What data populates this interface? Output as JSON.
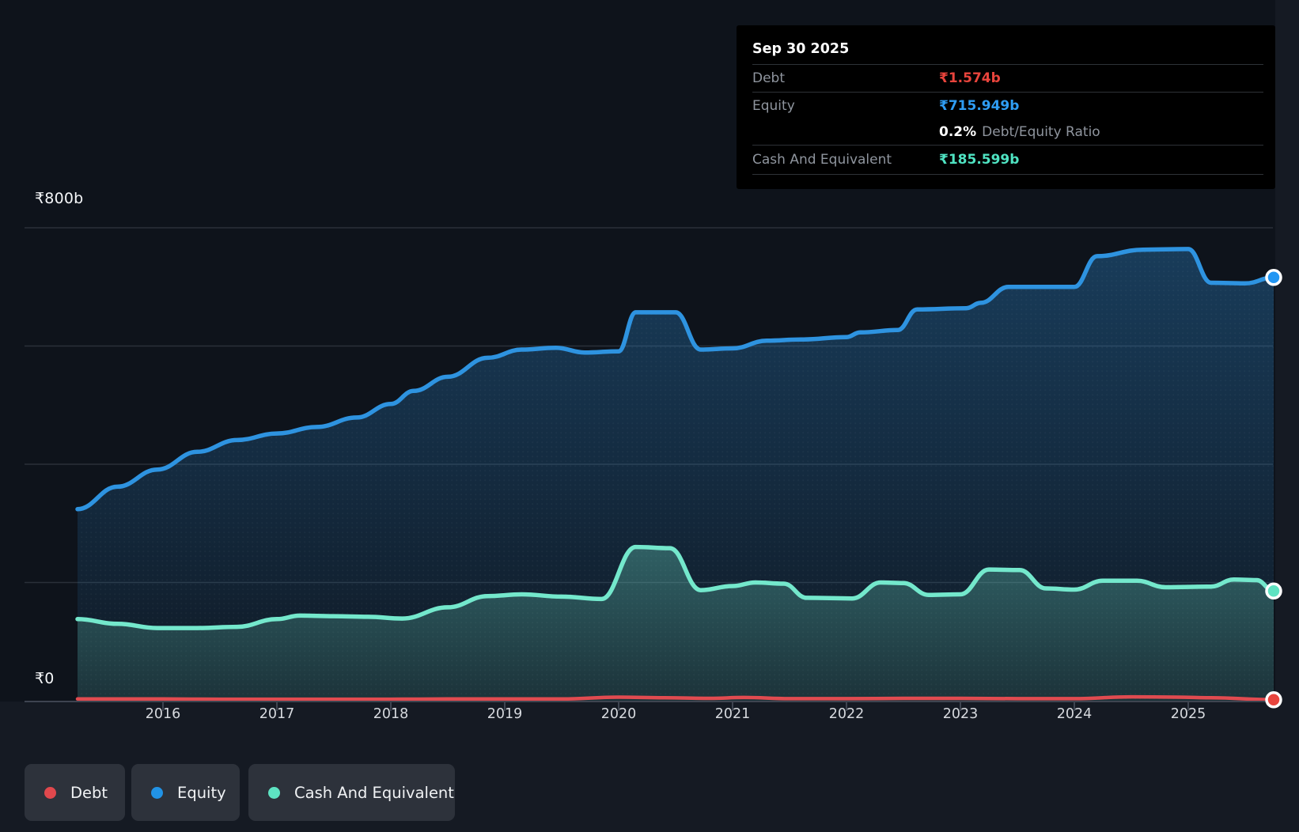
{
  "tooltip": {
    "date": "Sep 30 2025",
    "debt_label": "Debt",
    "debt_value": "₹1.574b",
    "equity_label": "Equity",
    "equity_value": "₹715.949b",
    "ratio_value": "0.2%",
    "ratio_label": "Debt/Equity Ratio",
    "cash_label": "Cash And Equivalent",
    "cash_value": "₹185.599b"
  },
  "legend": {
    "items": [
      {
        "label": "Debt",
        "color": "#e0484d"
      },
      {
        "label": "Equity",
        "color": "#2193e6"
      },
      {
        "label": "Cash And Equivalent",
        "color": "#5ee3c2"
      }
    ]
  },
  "colors": {
    "page_bg": "#151a23",
    "plot_bg": "#0e131b",
    "gridline": "#2a3039",
    "axis": "#3e4450",
    "debt_value": "#e8443c",
    "equity_value": "#2f9df3",
    "cash_value": "#4fe3c2"
  },
  "chart_data": {
    "type": "area",
    "title": "",
    "xlabel": "",
    "ylabel": "₹ billions",
    "x_range": [
      2015.25,
      2025.75
    ],
    "ylim": [
      0,
      800
    ],
    "y_axis": {
      "gridline_values": [
        0,
        200,
        400,
        600,
        800
      ],
      "label_top": "₹800b",
      "label_zero": "₹0"
    },
    "x_axis": {
      "tick_years": [
        "2016",
        "2017",
        "2018",
        "2019",
        "2020",
        "2021",
        "2022",
        "2023",
        "2024",
        "2025"
      ]
    },
    "legend_position": "bottom",
    "series": [
      {
        "key": "equity",
        "name": "Equity",
        "color": "#2e93e0",
        "marker_color": "#2196f3",
        "fill": true,
        "fill_opacity_top": 0.32,
        "fill_opacity_bottom": 0.05,
        "line_width": 5.5,
        "last_value_label": "₹715.949b",
        "points": [
          [
            2015.25,
            324
          ],
          [
            2015.6,
            362
          ],
          [
            2015.95,
            391
          ],
          [
            2016.3,
            421
          ],
          [
            2016.65,
            441
          ],
          [
            2017.0,
            452
          ],
          [
            2017.35,
            463
          ],
          [
            2017.7,
            479
          ],
          [
            2018.0,
            502
          ],
          [
            2018.2,
            524
          ],
          [
            2018.5,
            548
          ],
          [
            2018.85,
            580
          ],
          [
            2019.15,
            594
          ],
          [
            2019.45,
            597
          ],
          [
            2019.7,
            589
          ],
          [
            2020.0,
            591
          ],
          [
            2020.15,
            657
          ],
          [
            2020.5,
            657
          ],
          [
            2020.72,
            594
          ],
          [
            2021.0,
            596
          ],
          [
            2021.3,
            609
          ],
          [
            2021.6,
            611
          ],
          [
            2022.0,
            615
          ],
          [
            2022.12,
            623
          ],
          [
            2022.45,
            627
          ],
          [
            2022.62,
            662
          ],
          [
            2023.05,
            664
          ],
          [
            2023.18,
            673
          ],
          [
            2023.42,
            700
          ],
          [
            2024.0,
            700
          ],
          [
            2024.2,
            752
          ],
          [
            2024.6,
            763
          ],
          [
            2025.0,
            764
          ],
          [
            2025.2,
            707
          ],
          [
            2025.5,
            706
          ],
          [
            2025.75,
            715.949
          ]
        ]
      },
      {
        "key": "cash",
        "name": "Cash And Equivalent",
        "color": "#74e8cc",
        "marker_color": "#5ee3c2",
        "fill": true,
        "fill_opacity_top": 0.3,
        "fill_opacity_bottom": 0.12,
        "line_width": 5.5,
        "last_value_label": "₹185.599b",
        "points": [
          [
            2015.25,
            138
          ],
          [
            2015.6,
            130
          ],
          [
            2015.95,
            123
          ],
          [
            2016.3,
            123
          ],
          [
            2016.65,
            125
          ],
          [
            2017.0,
            138
          ],
          [
            2017.2,
            144
          ],
          [
            2017.5,
            143
          ],
          [
            2017.8,
            142
          ],
          [
            2018.1,
            139
          ],
          [
            2018.5,
            158
          ],
          [
            2018.85,
            177
          ],
          [
            2019.15,
            180
          ],
          [
            2019.5,
            176
          ],
          [
            2019.85,
            172
          ],
          [
            2020.15,
            260
          ],
          [
            2020.45,
            258
          ],
          [
            2020.72,
            187
          ],
          [
            2021.0,
            194
          ],
          [
            2021.2,
            200
          ],
          [
            2021.45,
            198
          ],
          [
            2021.65,
            174
          ],
          [
            2022.05,
            173
          ],
          [
            2022.3,
            200
          ],
          [
            2022.5,
            199
          ],
          [
            2022.72,
            179
          ],
          [
            2023.0,
            180
          ],
          [
            2023.25,
            222
          ],
          [
            2023.52,
            221
          ],
          [
            2023.75,
            190
          ],
          [
            2024.0,
            188
          ],
          [
            2024.25,
            203
          ],
          [
            2024.55,
            203
          ],
          [
            2024.8,
            192
          ],
          [
            2025.2,
            193
          ],
          [
            2025.4,
            205
          ],
          [
            2025.6,
            204
          ],
          [
            2025.75,
            185.599
          ]
        ]
      },
      {
        "key": "debt",
        "name": "Debt",
        "color": "#e14b50",
        "marker_color": "#e8453e",
        "fill": false,
        "line_width": 4.5,
        "last_value_label": "₹1.574b",
        "points": [
          [
            2015.25,
            3
          ],
          [
            2016.0,
            3
          ],
          [
            2016.5,
            2.5
          ],
          [
            2017.0,
            2.5
          ],
          [
            2017.5,
            2.5
          ],
          [
            2018.0,
            2.5
          ],
          [
            2018.5,
            3
          ],
          [
            2019.0,
            3
          ],
          [
            2019.5,
            3
          ],
          [
            2020.0,
            6
          ],
          [
            2020.4,
            5
          ],
          [
            2020.8,
            4
          ],
          [
            2021.1,
            5.5
          ],
          [
            2021.5,
            3.5
          ],
          [
            2022.0,
            3.5
          ],
          [
            2022.5,
            4
          ],
          [
            2023.0,
            4
          ],
          [
            2023.5,
            3.5
          ],
          [
            2024.0,
            3.5
          ],
          [
            2024.5,
            6.5
          ],
          [
            2024.9,
            6
          ],
          [
            2025.2,
            5
          ],
          [
            2025.75,
            1.574
          ]
        ]
      }
    ]
  }
}
